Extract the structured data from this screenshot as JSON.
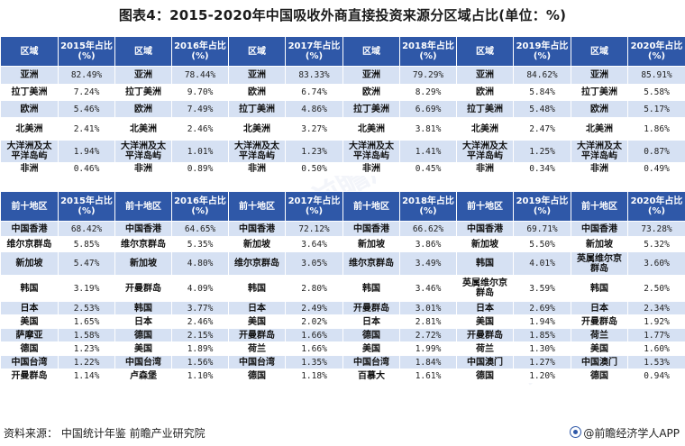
{
  "title": "图表4：2015-2020年中国吸收外商直接投资来源分区域占比(单位：%)",
  "chart_data": [
    {
      "type": "table",
      "columns": [
        "区域",
        "2015年占比\n(%)",
        "区域",
        "2016年占比\n(%)",
        "区域",
        "2017年占比\n(%)",
        "区域",
        "2018年占比\n(%)",
        "区域",
        "2019年占比\n(%)",
        "区域",
        "2020年占比\n(%)"
      ],
      "rows": [
        [
          "亚洲",
          "82.49%",
          "亚洲",
          "78.44%",
          "亚洲",
          "83.33%",
          "亚洲",
          "79.29%",
          "亚洲",
          "84.62%",
          "亚洲",
          "85.91%"
        ],
        [
          "拉丁美洲",
          "7.24%",
          "拉丁美洲",
          "9.70%",
          "欧洲",
          "6.74%",
          "欧洲",
          "8.29%",
          "欧洲",
          "5.84%",
          "拉丁美洲",
          "5.58%"
        ],
        [
          "欧洲",
          "5.46%",
          "欧洲",
          "7.49%",
          "拉丁美洲",
          "4.86%",
          "拉丁美洲",
          "6.69%",
          "拉丁美洲",
          "5.48%",
          "欧洲",
          "5.17%"
        ],
        [
          "北美洲",
          "2.41%",
          "北美洲",
          "2.46%",
          "北美洲",
          "3.27%",
          "北美洲",
          "3.81%",
          "北美洲",
          "2.47%",
          "北美洲",
          "1.86%"
        ],
        [
          "大洋洲及太\n平洋岛屿",
          "1.94%",
          "大洋洲及太\n平洋岛屿",
          "1.01%",
          "大洋洲及太\n平洋岛屿",
          "1.23%",
          "大洋洲及太\n平洋岛屿",
          "1.41%",
          "大洋洲及太\n平洋岛屿",
          "1.25%",
          "大洋洲及太\n平洋岛屿",
          "0.87%"
        ],
        [
          "非洲",
          "0.46%",
          "非洲",
          "0.89%",
          "非洲",
          "0.50%",
          "非洲",
          "0.45%",
          "非洲",
          "0.34%",
          "非洲",
          "0.49%"
        ]
      ]
    },
    {
      "type": "table",
      "columns": [
        "前十地区",
        "2015年占比\n(%)",
        "前十地区",
        "2016年占比\n(%)",
        "前十地区",
        "2017年占比\n(%)",
        "前十地区",
        "2018年占比\n(%)",
        "前十地区",
        "2019年占比\n(%)",
        "前十地区",
        "2020年占比\n(%)"
      ],
      "rows": [
        [
          "中国香港",
          "68.42%",
          "中国香港",
          "64.65%",
          "中国香港",
          "72.12%",
          "中国香港",
          "66.62%",
          "中国香港",
          "69.71%",
          "中国香港",
          "73.28%"
        ],
        [
          "维尔京群岛",
          "5.85%",
          "维尔京群岛",
          "5.35%",
          "新加坡",
          "3.64%",
          "新加坡",
          "3.86%",
          "新加坡",
          "5.50%",
          "新加坡",
          "5.32%"
        ],
        [
          "新加坡",
          "5.47%",
          "新加坡",
          "4.80%",
          "维尔京群岛",
          "3.05%",
          "维尔京群岛",
          "3.49%",
          "韩国",
          "4.01%",
          "英属维尔京\n群岛",
          "3.60%"
        ],
        [
          "韩国",
          "3.19%",
          "开曼群岛",
          "4.09%",
          "韩国",
          "2.80%",
          "韩国",
          "3.46%",
          "英属维尔京\n群岛",
          "3.59%",
          "韩国",
          "2.50%"
        ],
        [
          "日本",
          "2.53%",
          "韩国",
          "3.77%",
          "日本",
          "2.49%",
          "开曼群岛",
          "3.01%",
          "日本",
          "2.69%",
          "日本",
          "2.34%"
        ],
        [
          "美国",
          "1.65%",
          "日本",
          "2.46%",
          "美国",
          "2.02%",
          "日本",
          "2.81%",
          "美国",
          "1.94%",
          "开曼群岛",
          "1.92%"
        ],
        [
          "萨摩亚",
          "1.58%",
          "德国",
          "2.15%",
          "开曼群岛",
          "1.66%",
          "德国",
          "2.72%",
          "开曼群岛",
          "1.85%",
          "荷兰",
          "1.77%"
        ],
        [
          "德国",
          "1.23%",
          "美国",
          "1.89%",
          "荷兰",
          "1.66%",
          "美国",
          "1.99%",
          "荷兰",
          "1.30%",
          "美国",
          "1.60%"
        ],
        [
          "中国台湾",
          "1.22%",
          "中国台湾",
          "1.56%",
          "中国台湾",
          "1.35%",
          "中国台湾",
          "1.84%",
          "中国澳门",
          "1.27%",
          "中国澳门",
          "1.53%"
        ],
        [
          "开曼群岛",
          "1.14%",
          "卢森堡",
          "1.10%",
          "德国",
          "1.18%",
          "百慕大",
          "1.61%",
          "德国",
          "1.20%",
          "德国",
          "0.94%"
        ]
      ]
    }
  ],
  "footer": {
    "source": "资料来源：  中国统计年鉴 前瞻产业研究院",
    "brand": "@前瞻经济学人APP",
    "brand_icon": "qianzhan-logo-icon"
  },
  "colors": {
    "header": "#2f58a8",
    "stripe": "#d6e1f3",
    "background": "#ffffff"
  }
}
